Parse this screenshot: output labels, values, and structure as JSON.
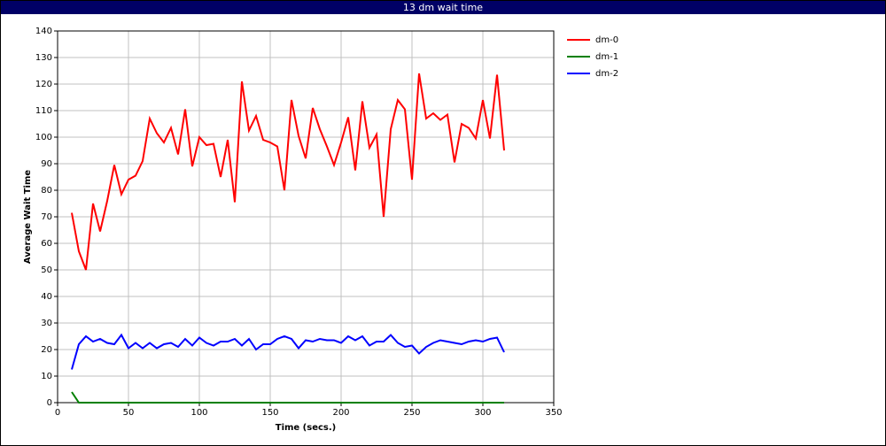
{
  "chart_data": {
    "type": "line",
    "title": "13 dm wait time",
    "x_label": "Time (secs.)",
    "y_label": "Average Wait Time",
    "x": [
      10,
      15,
      20,
      25,
      30,
      35,
      40,
      45,
      50,
      55,
      60,
      65,
      70,
      75,
      80,
      85,
      90,
      95,
      100,
      105,
      110,
      115,
      120,
      125,
      130,
      135,
      140,
      145,
      150,
      155,
      160,
      165,
      170,
      175,
      180,
      185,
      190,
      195,
      200,
      205,
      210,
      215,
      220,
      225,
      230,
      235,
      240,
      245,
      250,
      255,
      260,
      265,
      270,
      275,
      280,
      285,
      290,
      295,
      300,
      305,
      310,
      315
    ],
    "series": [
      {
        "name": "dm-0",
        "color": "#ff0000",
        "values": [
          71.5,
          57,
          50,
          75,
          64.5,
          76,
          89.5,
          78.5,
          84,
          85.5,
          91,
          107,
          101.5,
          98,
          103.5,
          93.5,
          110.5,
          89,
          100,
          97,
          97.5,
          85,
          99,
          75.5,
          121,
          102.5,
          108,
          99,
          98,
          96.5,
          80,
          114,
          100.5,
          92,
          111,
          103,
          96.5,
          89.5,
          98,
          107.5,
          87.5,
          113.5,
          96,
          101,
          70,
          103,
          114,
          110.5,
          84,
          124,
          107,
          109,
          106.5,
          108.5,
          90.5,
          105,
          103.5,
          99.5,
          114,
          99.5,
          123.5,
          95
        ]
      },
      {
        "name": "dm-1",
        "color": "#008000",
        "values": [
          4,
          0,
          0,
          0,
          0,
          0,
          0,
          0,
          0,
          0,
          0,
          0,
          0,
          0,
          0,
          0,
          0,
          0,
          0,
          0,
          0,
          0,
          0,
          0,
          0,
          0,
          0,
          0,
          0,
          0,
          0,
          0,
          0,
          0,
          0,
          0,
          0,
          0,
          0,
          0,
          0,
          0,
          0,
          0,
          0,
          0,
          0,
          0,
          0,
          0,
          0,
          0,
          0,
          0,
          0,
          0,
          0,
          0,
          0,
          0,
          0,
          0
        ]
      },
      {
        "name": "dm-2",
        "color": "#0000ff",
        "values": [
          12.5,
          22,
          25,
          23,
          24,
          22.5,
          22,
          25.5,
          20.5,
          22.5,
          20.5,
          22.5,
          20.5,
          22,
          22.5,
          21,
          24,
          21.5,
          24.5,
          22.5,
          21.5,
          23,
          23,
          24,
          21.5,
          24,
          20,
          22,
          22,
          24,
          25,
          24,
          20.5,
          23.5,
          23,
          24,
          23.5,
          23.5,
          22.5,
          25,
          23.5,
          25,
          21.5,
          23,
          23,
          25.5,
          22.5,
          21,
          21.5,
          18.5,
          21,
          22.5,
          23.5,
          23,
          22.5,
          22,
          23,
          23.5,
          23,
          24,
          24.5,
          19
        ]
      }
    ],
    "xlim": [
      0,
      350
    ],
    "xticks": [
      0,
      50,
      100,
      150,
      200,
      250,
      300,
      350
    ],
    "ylim": [
      0,
      140
    ],
    "yticks": [
      0,
      10,
      20,
      30,
      40,
      50,
      60,
      70,
      80,
      90,
      100,
      110,
      120,
      130,
      140
    ],
    "grid": true,
    "legend": "right"
  }
}
